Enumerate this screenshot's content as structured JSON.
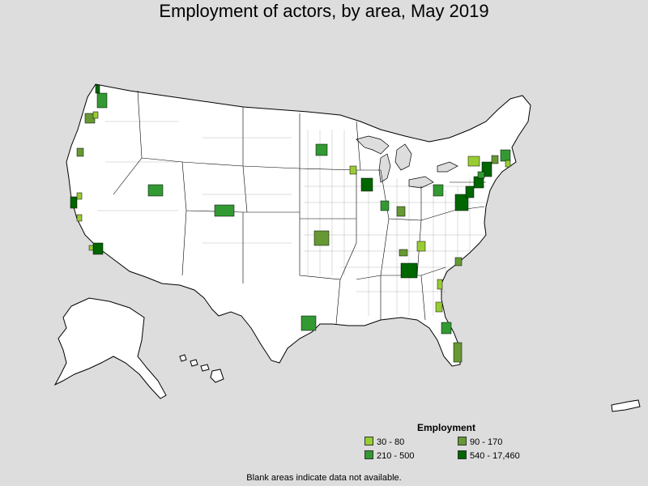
{
  "title": "Employment of actors, by area, May 2019",
  "legend": {
    "title": "Employment",
    "items": [
      {
        "label": "30 - 80",
        "color": "#99cc33"
      },
      {
        "label": "90 - 170",
        "color": "#669933"
      },
      {
        "label": "210 - 500",
        "color": "#339933"
      },
      {
        "label": "540 - 17,460",
        "color": "#006600"
      }
    ]
  },
  "footnote": "Blank areas indicate data not available.",
  "colors": {
    "background": "#dddddd",
    "land": "#ffffff",
    "border": "#000000"
  }
}
